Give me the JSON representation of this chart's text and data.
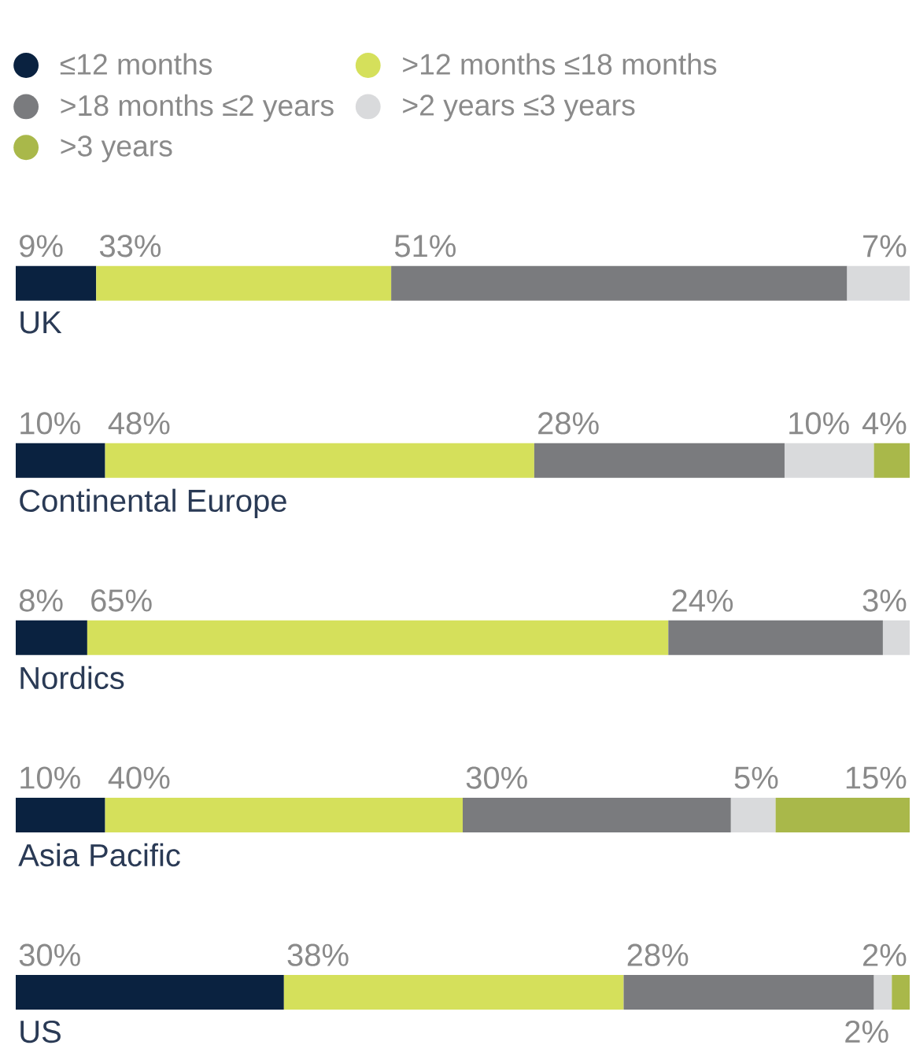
{
  "chart_data": {
    "type": "bar",
    "orientation": "horizontal",
    "stacked": true,
    "categories": [
      "UK",
      "Continental Europe",
      "Nordics",
      "Asia Pacific",
      "US"
    ],
    "xlim": [
      0,
      100
    ],
    "tick_labels": "y",
    "legend": "top",
    "series": [
      {
        "name": "≤12 months",
        "color": "#0a2240",
        "values": [
          9,
          10,
          8,
          10,
          30
        ],
        "value_labels": [
          "9%",
          "10%",
          "8%",
          "10%",
          "30%"
        ]
      },
      {
        "name": ">12 months ≤18 months",
        "color": "#d5e05b",
        "values": [
          33,
          48,
          65,
          40,
          38
        ],
        "value_labels": [
          "33%",
          "48%",
          "65%",
          "40%",
          "38%"
        ]
      },
      {
        "name": ">18 months ≤2 years",
        "color": "#7a7b7e",
        "values": [
          51,
          28,
          24,
          30,
          28
        ],
        "value_labels": [
          "51%",
          "28%",
          "24%",
          "30%",
          "28%"
        ]
      },
      {
        "name": ">2 years ≤3 years",
        "color": "#d9dadc",
        "values": [
          7,
          10,
          3,
          5,
          2
        ],
        "value_labels": [
          "7%",
          "10%",
          "3%",
          "5%",
          "2%"
        ]
      },
      {
        "name": ">3 years",
        "color": "#a9b84a",
        "values": [
          null,
          4,
          null,
          15,
          2
        ],
        "value_labels": [
          null,
          "4%",
          null,
          "15%",
          "2%"
        ]
      }
    ]
  }
}
